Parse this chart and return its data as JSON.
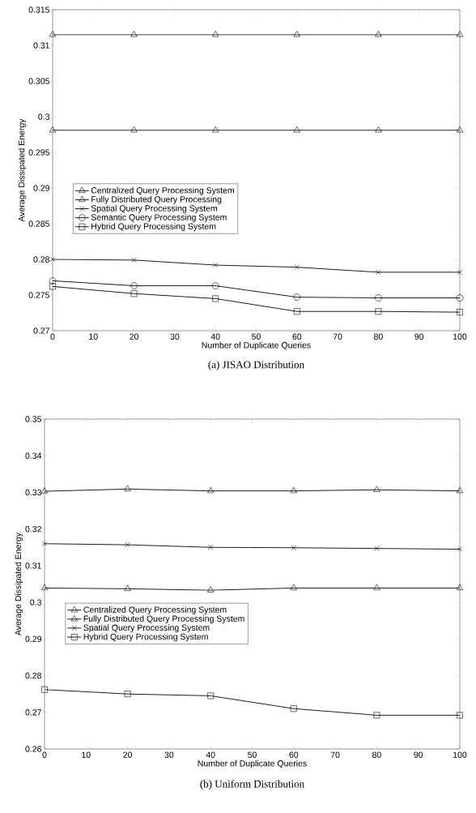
{
  "chart_data": [
    {
      "type": "line",
      "title": "(a)  JISAO Distribution",
      "xlabel": "Number of Duplicate Queries",
      "ylabel": "Average Dissipated Energy",
      "x": [
        0,
        20,
        40,
        60,
        80,
        100
      ],
      "xlim": [
        0,
        100
      ],
      "xticks": [
        0,
        10,
        20,
        30,
        40,
        50,
        60,
        70,
        80,
        90,
        100
      ],
      "ylim": [
        0.27,
        0.315
      ],
      "yticks": [
        0.27,
        0.275,
        0.28,
        0.285,
        0.29,
        0.295,
        0.3,
        0.305,
        0.31,
        0.315
      ],
      "grid": false,
      "legend": "center left",
      "series": [
        {
          "name": "Centralized Query Processing System",
          "color": "#000000",
          "marker": "triangle",
          "values": [
            0.3115,
            0.3115,
            0.3115,
            0.3115,
            0.3115,
            0.3115
          ]
        },
        {
          "name": "Fully Distributed Query Processing",
          "color": "#000000",
          "marker": "triangle",
          "values": [
            0.2981,
            0.2981,
            0.2981,
            0.2981,
            0.2981,
            0.2981
          ]
        },
        {
          "name": "Spatial Query Processing System",
          "color": "#000000",
          "marker": "cross",
          "values": [
            0.28,
            0.2799,
            0.2792,
            0.2789,
            0.2782,
            0.2782
          ]
        },
        {
          "name": "Semantic Query Processing System",
          "color": "#000000",
          "marker": "circle",
          "values": [
            0.277,
            0.2763,
            0.2763,
            0.2747,
            0.2746,
            0.2746
          ]
        },
        {
          "name": "Hybrid Query Processing System",
          "color": "#000000",
          "marker": "square",
          "values": [
            0.2762,
            0.2752,
            0.2745,
            0.2727,
            0.2727,
            0.2726
          ]
        }
      ]
    },
    {
      "type": "line",
      "title": "(b)  Uniform Distribution",
      "xlabel": "Number of Duplicate Queries",
      "ylabel": "Average Dissipated Energy",
      "x": [
        0,
        20,
        40,
        60,
        80,
        100
      ],
      "xlim": [
        0,
        100
      ],
      "xticks": [
        0,
        10,
        20,
        30,
        40,
        50,
        60,
        70,
        80,
        90,
        100
      ],
      "ylim": [
        0.26,
        0.35
      ],
      "yticks": [
        0.26,
        0.27,
        0.28,
        0.29,
        0.3,
        0.31,
        0.32,
        0.33,
        0.34,
        0.35
      ],
      "grid": false,
      "legend": "center left",
      "series": [
        {
          "name": "Centralized Query Processing System",
          "color": "#000000",
          "marker": "triangle",
          "values": [
            0.3303,
            0.3309,
            0.3304,
            0.3304,
            0.3307,
            0.3304
          ]
        },
        {
          "name": "Fully Distributed Query Processing System",
          "color": "#000000",
          "marker": "triangle",
          "values": [
            0.3039,
            0.3037,
            0.3033,
            0.3039,
            0.3039,
            0.3039
          ]
        },
        {
          "name": "Spatial Query Processing System",
          "color": "#000000",
          "marker": "cross",
          "values": [
            0.316,
            0.3157,
            0.315,
            0.3149,
            0.3147,
            0.3145
          ]
        },
        {
          "name": "Hybrid Query Processing System",
          "color": "#000000",
          "marker": "square",
          "values": [
            0.2762,
            0.275,
            0.2745,
            0.271,
            0.2692,
            0.2692
          ]
        }
      ]
    }
  ]
}
